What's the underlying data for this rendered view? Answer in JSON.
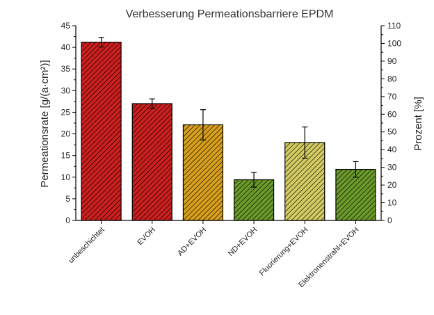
{
  "chart_data": {
    "type": "bar",
    "title": "Verbesserung Permeationsbarriere EPDM",
    "ylabel_left": "Permeationsrate [g/(a·cm²)]",
    "ylabel_right": "Prozent [%]",
    "ylim_left": [
      0,
      45
    ],
    "ylim_right": [
      0,
      110
    ],
    "yticks_left": [
      0,
      5,
      10,
      15,
      20,
      25,
      30,
      35,
      40,
      45
    ],
    "yticks_right": [
      0,
      10,
      20,
      30,
      40,
      50,
      60,
      70,
      80,
      90,
      100,
      110
    ],
    "categories": [
      "unbeschichtet",
      "EVOH",
      "AD+EVOH",
      "ND+EVOH",
      "Fluorierung+EVOH",
      "Elektronenstrahl+EVOH"
    ],
    "values": [
      41.2,
      27.0,
      22.1,
      9.4,
      18.0,
      11.8
    ],
    "errors": [
      1.1,
      1.1,
      3.5,
      1.7,
      3.6,
      1.8
    ],
    "bar_colors": [
      "#cc1f1f",
      "#cc1f1f",
      "#d8a01c",
      "#6a9a2a",
      "#d4cc62",
      "#6a9a2a"
    ],
    "grid": false
  }
}
